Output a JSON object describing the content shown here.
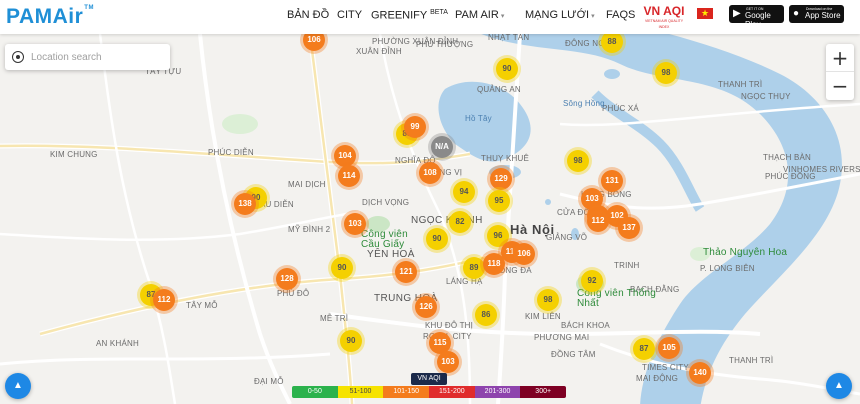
{
  "header": {
    "logo": "PAMAir",
    "logo_tm": "TM",
    "nav": {
      "ban_do": "BẢN ĐỒ",
      "city": "CITY",
      "greenify": "GREENIFY",
      "greenify_badge": "BETA",
      "pam_air": "PAM AIR",
      "mang_luoi": "MẠNG LƯỚI",
      "faqs": "FAQS"
    },
    "vnaqi_logo": "VN AQI",
    "vnaqi_sub": "VIETNAM AIR QUALITY INDEX",
    "google_play_small": "GET IT ON",
    "google_play": "Google Play",
    "app_store_small": "Download on the",
    "app_store": "App Store"
  },
  "search": {
    "placeholder": "Location search"
  },
  "zoom": {
    "in": "+",
    "out": "−"
  },
  "map": {
    "places": {
      "tay_tuu": "TÂY TỰU",
      "phuc_dien": "PHÚC DIỄN",
      "kim_chung": "KIM CHUNG",
      "mai_dich": "MAI DỊCH",
      "dich_vong": "DỊCH VỌNG",
      "my_dinh2": "MỸ ĐÌNH 2",
      "phu_do": "PHÚ ĐÔ",
      "tay_mo": "TÂY MỖ",
      "me_tri": "MỄ TRÌ",
      "an_khanh": "AN KHÁNH",
      "dai_mo": "ĐẠI MỖ",
      "cau_dien": "CẦU DIỄN",
      "nghia_do": "NGHĨA ĐÔ",
      "cong_vi": "CỐNG VỊ",
      "ngoc_khanh": "NGỌC KHÁNH",
      "ha_noi": "Hà Nội",
      "yen_hoa": "YÊN HOÀ",
      "trung_hoa": "TRUNG HOÀ",
      "lang_ha": "LÁNG HẠ",
      "kim_lien": "KIM LIÊN",
      "bach_khoa": "BÁCH KHOA",
      "phuong_mai": "PHƯƠNG MAI",
      "dong_tam": "ĐỒNG TÂM",
      "khu_do_thi": "KHU ĐÔ THỊ",
      "royal_city": "ROYAL CITY",
      "thuy_khue": "THUỴ KHUÊ",
      "quang_an": "QUẢNG AN",
      "nhat_tan": "NHẬT TÂN",
      "phu_thuong": "PHÚ THƯỢNG",
      "xuan_dinh": "XUÂN ĐỈNH",
      "ngoc_thuy": "NGỌC THỤY",
      "thach_ban": "THẠCH BÀN",
      "phuc_dong": "PHÚC ĐỒNG",
      "bach_dang": "BẠCH ĐẰNG",
      "phuc_xa": "PHÚC XÁ",
      "cua_dong": "CỬA ĐÔNG",
      "trinh": "TRINH",
      "p_long_bien": "P. LONG BIÊN",
      "thach_ban2": "THẠCH BÀN",
      "mai_dong": "MAI ĐỘNG",
      "thanh_tri": "THANH TRÌ",
      "times_city": "TIMES CITY",
      "vinhomes": "VINHOMES RIVERSIDE",
      "thanh_tri2": "THANH TRÌ",
      "cong_vien_cau_giay": "Công viên Cầu Giấy",
      "cong_vien_thong_nhat": "Công viên Thống Nhất",
      "thao_nguyen_hoa": "Thảo Nguyên Hoa",
      "ho_tay": "Hồ Tây",
      "song_hong": "Sông Hồng",
      "phuong_xanh": "PHƯỜNG XUÂN ĐỈNH",
      "giang_vo": "GIẢNG VÕ",
      "dong_ngac": "ĐÔNG NGẠC",
      "hoang_liet": "HÀNG BÔNG",
      "dong_da": "ĐỐNG ĐA"
    },
    "markers": [
      {
        "value": "106",
        "level": "o"
      },
      {
        "value": "90",
        "level": "y"
      },
      {
        "value": "88",
        "level": "y"
      },
      {
        "value": "98",
        "level": "y"
      },
      {
        "value": "83",
        "level": "y"
      },
      {
        "value": "99",
        "level": "y"
      },
      {
        "value": "N/A",
        "level": "g"
      },
      {
        "value": "104",
        "level": "o"
      },
      {
        "value": "114",
        "level": "o"
      },
      {
        "value": "108",
        "level": "o"
      },
      {
        "value": "94",
        "level": "y"
      },
      {
        "value": "129",
        "level": "o"
      },
      {
        "value": "98",
        "level": "y"
      },
      {
        "value": "131",
        "level": "o"
      },
      {
        "value": "103",
        "level": "o"
      },
      {
        "value": "90",
        "level": "y"
      },
      {
        "value": "138",
        "level": "o"
      },
      {
        "value": "95",
        "level": "y"
      },
      {
        "value": "103",
        "level": "o"
      },
      {
        "value": "82",
        "level": "y"
      },
      {
        "value": "111",
        "level": "o"
      },
      {
        "value": "102",
        "level": "o"
      },
      {
        "value": "112",
        "level": "o"
      },
      {
        "value": "137",
        "level": "o"
      },
      {
        "value": "90",
        "level": "y"
      },
      {
        "value": "96",
        "level": "y"
      },
      {
        "value": "111",
        "level": "o"
      },
      {
        "value": "106",
        "level": "o"
      },
      {
        "value": "89",
        "level": "y"
      },
      {
        "value": "118",
        "level": "o"
      },
      {
        "value": "121",
        "level": "o"
      },
      {
        "value": "90",
        "level": "y"
      },
      {
        "value": "128",
        "level": "o"
      },
      {
        "value": "92",
        "level": "y"
      },
      {
        "value": "87",
        "level": "y"
      },
      {
        "value": "112",
        "level": "o"
      },
      {
        "value": "98",
        "level": "y"
      },
      {
        "value": "126",
        "level": "o"
      },
      {
        "value": "86",
        "level": "y"
      },
      {
        "value": "90",
        "level": "y"
      },
      {
        "value": "115",
        "level": "o"
      },
      {
        "value": "103",
        "level": "o"
      },
      {
        "value": "87",
        "level": "y"
      },
      {
        "value": "105",
        "level": "o"
      },
      {
        "value": "140",
        "level": "o"
      }
    ]
  },
  "legend": {
    "title": "VN AQI",
    "bands": [
      {
        "label": "0-50",
        "color": "#2bb24c"
      },
      {
        "label": "51-100",
        "color": "#f6e300"
      },
      {
        "label": "101-150",
        "color": "#f47c1d"
      },
      {
        "label": "151-200",
        "color": "#e02c2c"
      },
      {
        "label": "201-300",
        "color": "#8e44ad"
      },
      {
        "label": "300+",
        "color": "#7e0023"
      }
    ]
  },
  "controls": {
    "left_fab_icon": "chevron-up-icon",
    "right_fab_icon": "chevron-up-icon"
  }
}
